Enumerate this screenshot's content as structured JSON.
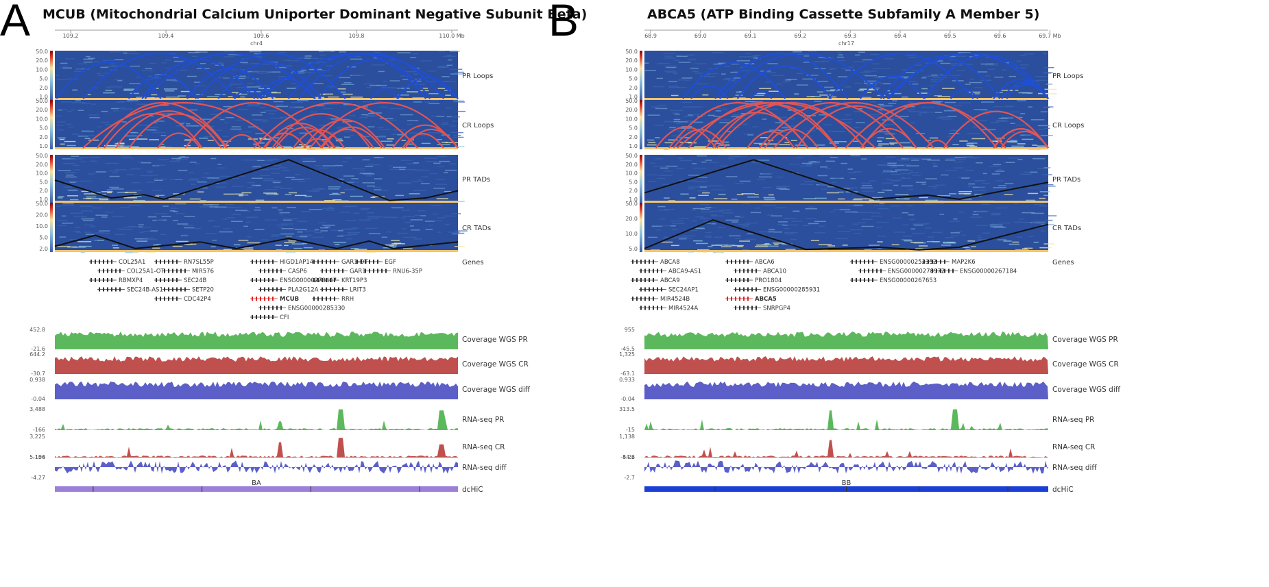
{
  "panels": [
    {
      "id": "A",
      "letter": "A",
      "title": "MCUB (Mitochondrial Calcium Uniporter Dominant Negative Subunit Beta)",
      "chrom": "chr4",
      "ticks": [
        "109.2",
        "109.4",
        "109.6",
        "109.8",
        "110.0 Mb"
      ],
      "hic_scale": [
        "50.0",
        "20.0",
        "10.0",
        "5.0",
        "2.0",
        "1.0"
      ],
      "hic_scale_last": [
        "50.0",
        "20.0",
        "10.0",
        "5.0",
        "2.0"
      ],
      "tracks": [
        "PR Loops",
        "CR Loops",
        "PR TADs",
        "CR TADs"
      ],
      "genes_label": "Genes",
      "genes": [
        [
          "COL25A1",
          "COL25A1-OT",
          "RBMXP4",
          "SEC24B-AS1"
        ],
        [
          "RN7SL55P",
          "MIR576",
          "SEC24B",
          "SETP20",
          "CDC42P4"
        ],
        [
          "HIGD1AP14",
          "CASP6",
          "ENSG00000273447",
          "PLA2G12A",
          "MCUB",
          "ENSG00000285330",
          "CFI"
        ],
        [
          "GAR1-DT",
          "GAR1",
          "KRT19P3",
          "LRIT3",
          "RRH"
        ],
        [
          "EGF",
          "RNU6-35P"
        ]
      ],
      "highlight_gene": "MCUB",
      "cov_tracks": [
        {
          "label": "Coverage WGS PR",
          "max": "452.8",
          "min": "-21.6",
          "color": "#5cb85c"
        },
        {
          "label": "Coverage WGS CR",
          "max": "644.2",
          "min": "-30.7",
          "color": "#c0504d"
        },
        {
          "label": "Coverage WGS diff",
          "max": "0.938",
          "min": "-0.04",
          "color": "#5b5fc7"
        }
      ],
      "rna_tracks": [
        {
          "label": "RNA-seq PR",
          "max": "3,488",
          "min": "-166",
          "color": "#5cb85c"
        },
        {
          "label": "RNA-seq CR",
          "max": "3,225",
          "min": "-154",
          "color": "#c0504d"
        },
        {
          "label": "RNA-seq diff",
          "max": "5.106",
          "min": "-4.27",
          "color": "#5b5fc7"
        }
      ],
      "dchic": {
        "label": "dcHiC",
        "name": "BA",
        "color": "#9b7fd9"
      }
    },
    {
      "id": "B",
      "letter": "B",
      "title": "ABCA5 (ATP Binding Cassette Subfamily A Member 5)",
      "chrom": "chr17",
      "ticks": [
        "68.9",
        "69.0",
        "69.1",
        "69.2",
        "69.3",
        "69.4",
        "69.5",
        "69.6",
        "69.7 Mb"
      ],
      "hic_scale": [
        "50.0",
        "20.0",
        "10.0",
        "5.0",
        "2.0",
        "1.0"
      ],
      "hic_scale_last": [
        "50.0",
        "20.0",
        "10.0",
        "5.0"
      ],
      "tracks": [
        "PR Loops",
        "CR Loops",
        "PR TADs",
        "CR TADs"
      ],
      "genes_label": "Genes",
      "genes": [
        [
          "ABCA8",
          "ABCA9-AS1",
          "ABCA9",
          "SEC24AP1",
          "MIR4524B",
          "MIR4524A"
        ],
        [
          "ABCA6",
          "ABCA10",
          "PRO1804",
          "ENSG00000285931",
          "ABCA5",
          "SNRPGP4"
        ],
        [
          "ENSG00000252352",
          "ENSG00000278972",
          "ENSG00000267653"
        ],
        [
          "MAP2K6",
          "ENSG00000267184"
        ]
      ],
      "highlight_gene": "ABCA5",
      "cov_tracks": [
        {
          "label": "Coverage WGS PR",
          "max": "955",
          "min": "-45.5",
          "color": "#5cb85c"
        },
        {
          "label": "Coverage WGS CR",
          "max": "1,325",
          "min": "-63.1",
          "color": "#c0504d"
        },
        {
          "label": "Coverage WGS diff",
          "max": "0.933",
          "min": "-0.04",
          "color": "#5b5fc7"
        }
      ],
      "rna_tracks": [
        {
          "label": "RNA-seq PR",
          "max": "313.5",
          "min": "-15",
          "color": "#5cb85c"
        },
        {
          "label": "RNA-seq CR",
          "max": "1,138",
          "min": "-54.2",
          "color": "#c0504d"
        },
        {
          "label": "RNA-seq diff",
          "max": "4.26",
          "min": "-2.7",
          "color": "#5b5fc7"
        }
      ],
      "dchic": {
        "label": "dcHiC",
        "name": "BB",
        "color": "#1a3fd6"
      }
    }
  ],
  "colors": {
    "pr_loop": "#1f4fd6",
    "cr_loop": "#e05555",
    "tad": "#111111",
    "hic_bg": "#2b4f9c",
    "hic_hot": "#f2e7a8"
  }
}
